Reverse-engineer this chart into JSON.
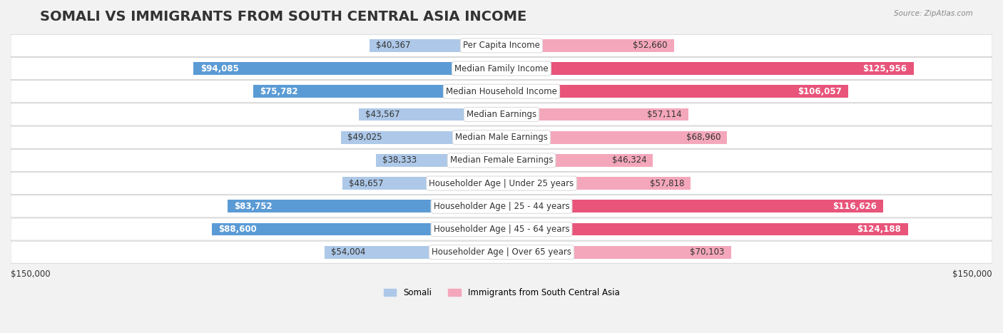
{
  "title": "SOMALI VS IMMIGRANTS FROM SOUTH CENTRAL ASIA INCOME",
  "source": "Source: ZipAtlas.com",
  "categories": [
    "Per Capita Income",
    "Median Family Income",
    "Median Household Income",
    "Median Earnings",
    "Median Male Earnings",
    "Median Female Earnings",
    "Householder Age | Under 25 years",
    "Householder Age | 25 - 44 years",
    "Householder Age | 45 - 64 years",
    "Householder Age | Over 65 years"
  ],
  "somali_values": [
    40367,
    94085,
    75782,
    43567,
    49025,
    38333,
    48657,
    83752,
    88600,
    54004
  ],
  "immigrant_values": [
    52660,
    125956,
    106057,
    57114,
    68960,
    46324,
    57818,
    116626,
    124188,
    70103
  ],
  "somali_labels": [
    "$40,367",
    "$94,085",
    "$75,782",
    "$43,567",
    "$49,025",
    "$38,333",
    "$48,657",
    "$83,752",
    "$88,600",
    "$54,004"
  ],
  "immigrant_labels": [
    "$52,660",
    "$125,956",
    "$106,057",
    "$57,114",
    "$68,960",
    "$46,324",
    "$57,818",
    "$116,626",
    "$124,188",
    "$70,103"
  ],
  "max_value": 150000,
  "x_label_left": "$150,000",
  "x_label_right": "$150,000",
  "somali_color_dark": "#5b9bd5",
  "somali_color_light": "#adc8e8",
  "immigrant_color_dark": "#e8547a",
  "immigrant_color_light": "#f4a7bb",
  "legend_somali": "Somali",
  "legend_immigrant": "Immigrants from South Central Asia",
  "bar_height": 0.55,
  "background_color": "#f2f2f2",
  "row_bg_color": "#ffffff",
  "title_fontsize": 14,
  "label_fontsize": 8.5,
  "category_fontsize": 8.5
}
